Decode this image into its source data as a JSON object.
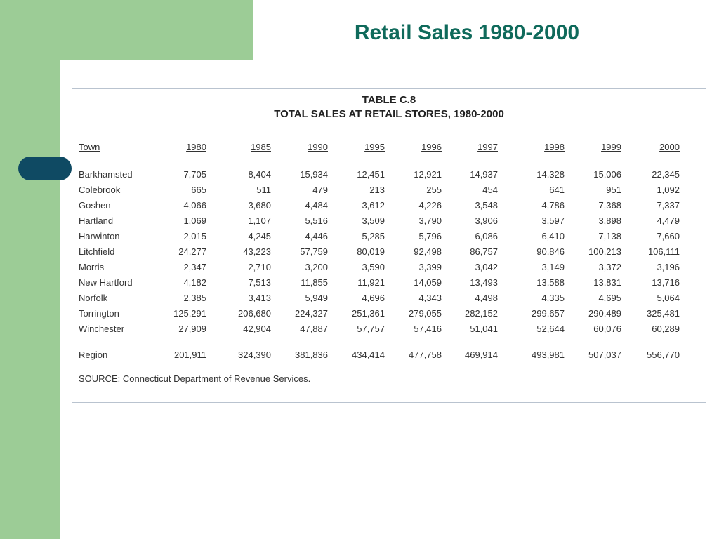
{
  "slide": {
    "title": "Retail Sales 1980-2000"
  },
  "table": {
    "heading1": "TABLE C.8",
    "heading2": "TOTAL SALES AT RETAIL STORES, 1980-2000",
    "columns": [
      "Town",
      "1980",
      "1985",
      "1990",
      "1995",
      "1996",
      "1997",
      "1998",
      "1999",
      "2000"
    ],
    "rows": [
      [
        "Barkhamsted",
        "7,705",
        "8,404",
        "15,934",
        "12,451",
        "12,921",
        "14,937",
        "14,328",
        "15,006",
        "22,345"
      ],
      [
        "Colebrook",
        "665",
        "511",
        "479",
        "213",
        "255",
        "454",
        "641",
        "951",
        "1,092"
      ],
      [
        "Goshen",
        "4,066",
        "3,680",
        "4,484",
        "3,612",
        "4,226",
        "3,548",
        "4,786",
        "7,368",
        "7,337"
      ],
      [
        "Hartland",
        "1,069",
        "1,107",
        "5,516",
        "3,509",
        "3,790",
        "3,906",
        "3,597",
        "3,898",
        "4,479"
      ],
      [
        "Harwinton",
        "2,015",
        "4,245",
        "4,446",
        "5,285",
        "5,796",
        "6,086",
        "6,410",
        "7,138",
        "7,660"
      ],
      [
        "Litchfield",
        "24,277",
        "43,223",
        "57,759",
        "80,019",
        "92,498",
        "86,757",
        "90,846",
        "100,213",
        "106,111"
      ],
      [
        "Morris",
        "2,347",
        "2,710",
        "3,200",
        "3,590",
        "3,399",
        "3,042",
        "3,149",
        "3,372",
        "3,196"
      ],
      [
        "New Hartford",
        "4,182",
        "7,513",
        "11,855",
        "11,921",
        "14,059",
        "13,493",
        "13,588",
        "13,831",
        "13,716"
      ],
      [
        "Norfolk",
        "2,385",
        "3,413",
        "5,949",
        "4,696",
        "4,343",
        "4,498",
        "4,335",
        "4,695",
        "5,064"
      ],
      [
        "Torrington",
        "125,291",
        "206,680",
        "224,327",
        "251,361",
        "279,055",
        "282,152",
        "299,657",
        "290,489",
        "325,481"
      ],
      [
        "Winchester",
        "27,909",
        "42,904",
        "47,887",
        "57,757",
        "57,416",
        "51,041",
        "52,644",
        "60,076",
        "60,289"
      ]
    ],
    "total_row": [
      "Region",
      "201,911",
      "324,390",
      "381,836",
      "434,414",
      "477,758",
      "469,914",
      "493,981",
      "507,037",
      "556,770"
    ],
    "source": "SOURCE: Connecticut Department of Revenue Services."
  },
  "colors": {
    "green": "#9ccc96",
    "navy": "#0f4a63",
    "title": "#0f6a5b"
  }
}
